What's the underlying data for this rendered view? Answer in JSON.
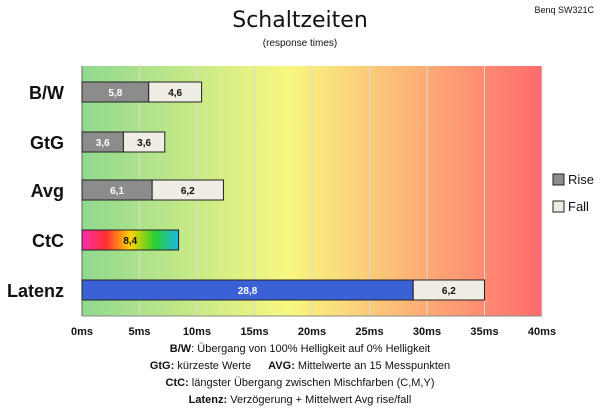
{
  "chart_data": {
    "type": "bar",
    "orientation": "horizontal",
    "stacked": true,
    "title": "Schaltzeiten",
    "subtitle": "(response times)",
    "corner_label": "Benq SW321C",
    "categories": [
      "B/W",
      "GtG",
      "Avg",
      "CtC",
      "Latenz"
    ],
    "series": [
      {
        "name": "Rise",
        "values": [
          5.8,
          3.6,
          6.1,
          8.4,
          28.8
        ],
        "labels": [
          "5,8",
          "3,6",
          "6,1",
          "8,4",
          "28,8"
        ]
      },
      {
        "name": "Fall",
        "values": [
          4.6,
          3.6,
          6.2,
          null,
          6.2
        ],
        "labels": [
          "4,6",
          "3,6",
          "6,2",
          "",
          "6,2"
        ]
      }
    ],
    "xlim": [
      0,
      40
    ],
    "x_ticks": [
      "0ms",
      "5ms",
      "10ms",
      "15ms",
      "20ms",
      "25ms",
      "30ms",
      "35ms",
      "40ms"
    ],
    "legend": {
      "position": "right",
      "entries": [
        "Rise",
        "Fall"
      ]
    },
    "background": "gradient green-yellow-red",
    "colors": {
      "rise": "#8c8c8c",
      "fall": "#f0ede4",
      "latenz": "#3a62d6",
      "ctc_gradient": [
        "#ff2bb0",
        "#ff3030",
        "#ffd400",
        "#2bd12b",
        "#1ab6e6"
      ],
      "bg_gradient": [
        "#8fd98f",
        "#f8f880",
        "#ff6b6b"
      ]
    },
    "footnotes": [
      {
        "key": "B/W",
        "text": ":  Übergang von 100% Helligkeit auf 0% Helligkeit"
      },
      {
        "key": "GtG:",
        "text": " kürzeste  Werte",
        "key2": "AVG:",
        "text2": " Mittelwerte  an 15 Messpunkten"
      },
      {
        "key": "CtC:",
        "text": " längster Übergang  zwischen Mischfarben (C,M,Y)"
      },
      {
        "key": "Latenz:",
        "text": " Verzögerung  + Mittelwert  Avg rise/fall"
      }
    ]
  }
}
